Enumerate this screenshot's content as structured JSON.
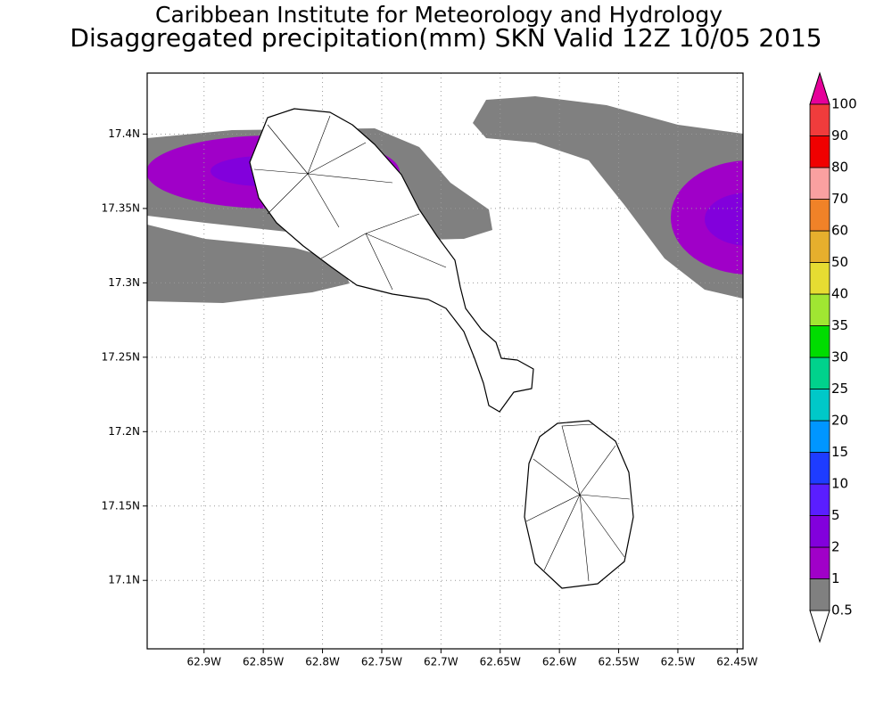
{
  "chart_data": {
    "type": "map",
    "title": "Caribbean Institute for Meteorology and Hydrology",
    "subtitle": "Disaggregated precipitation(mm) SKN Valid 12Z 10/05 2015",
    "xlim": [
      -62.948,
      -62.445
    ],
    "ylim": [
      17.054,
      17.441
    ],
    "xticks": [
      {
        "value": -62.9,
        "label": "62.9W"
      },
      {
        "value": -62.85,
        "label": "62.85W"
      },
      {
        "value": -62.8,
        "label": "62.8W"
      },
      {
        "value": -62.75,
        "label": "62.75W"
      },
      {
        "value": -62.7,
        "label": "62.7W"
      },
      {
        "value": -62.65,
        "label": "62.65W"
      },
      {
        "value": -62.6,
        "label": "62.6W"
      },
      {
        "value": -62.55,
        "label": "62.55W"
      },
      {
        "value": -62.5,
        "label": "62.5W"
      },
      {
        "value": -62.45,
        "label": "62.45W"
      }
    ],
    "yticks": [
      {
        "value": 17.1,
        "label": "17.1N"
      },
      {
        "value": 17.15,
        "label": "17.15N"
      },
      {
        "value": 17.2,
        "label": "17.2N"
      },
      {
        "value": 17.25,
        "label": "17.25N"
      },
      {
        "value": 17.3,
        "label": "17.3N"
      },
      {
        "value": 17.35,
        "label": "17.35N"
      },
      {
        "value": 17.4,
        "label": "17.4N"
      }
    ],
    "grid": true,
    "colorbar": {
      "levels": [
        0.5,
        1,
        2,
        5,
        10,
        15,
        20,
        25,
        30,
        35,
        40,
        50,
        60,
        70,
        80,
        90,
        100
      ],
      "colors": [
        "#808080",
        "#a000c8",
        "#8200dc",
        "#5a1eff",
        "#1e3cff",
        "#0096ff",
        "#00c8c8",
        "#00d28c",
        "#00dc00",
        "#a0e632",
        "#e6dc32",
        "#e6af2d",
        "#f08228",
        "#faa0a0",
        "#f00000",
        "#f03c3c"
      ],
      "under_color": "#ffffff",
      "over_color": "#e6009a"
    }
  }
}
